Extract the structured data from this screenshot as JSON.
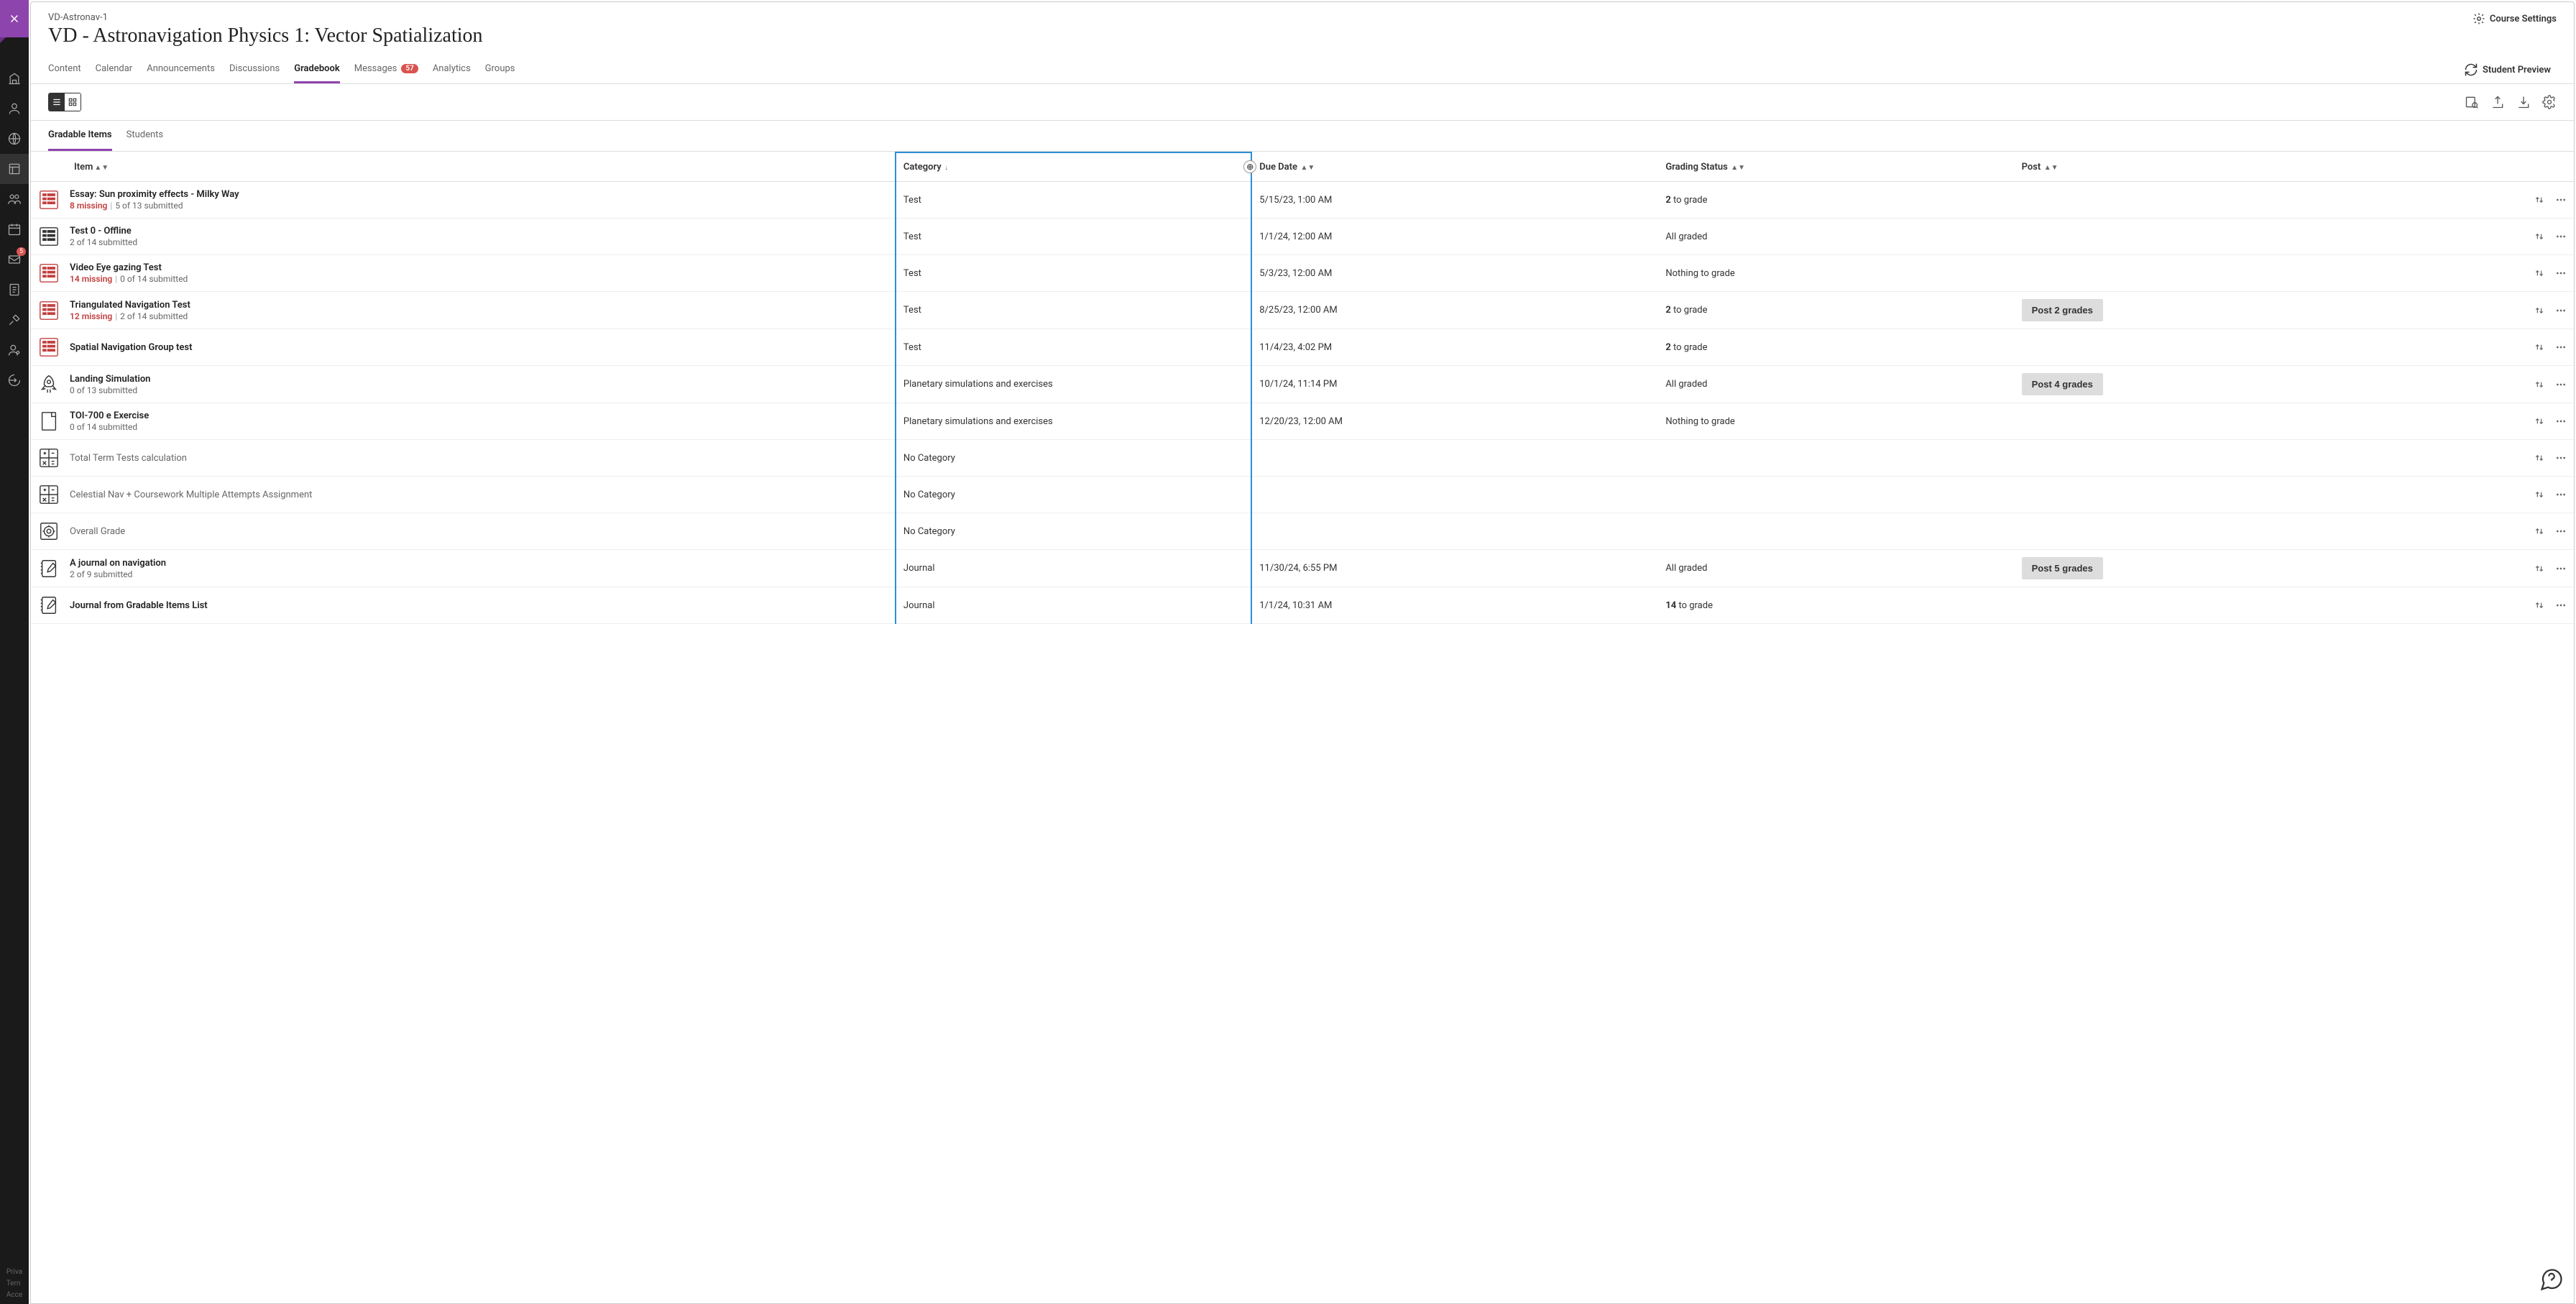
{
  "rail": {
    "footer_lines": [
      "Priva",
      "Tern",
      "Acce"
    ],
    "message_badge": "5"
  },
  "header": {
    "breadcrumb": "VD-Astronav-1",
    "title": "VD - Astronavigation Physics 1: Vector Spatialization",
    "course_settings": "Course Settings",
    "student_preview": "Student Preview"
  },
  "tabs": [
    {
      "label": "Content",
      "active": false
    },
    {
      "label": "Calendar",
      "active": false
    },
    {
      "label": "Announcements",
      "active": false
    },
    {
      "label": "Discussions",
      "active": false
    },
    {
      "label": "Gradebook",
      "active": true
    },
    {
      "label": "Messages",
      "active": false,
      "badge": "57"
    },
    {
      "label": "Analytics",
      "active": false
    },
    {
      "label": "Groups",
      "active": false
    }
  ],
  "subtabs": [
    {
      "label": "Gradable Items",
      "active": true
    },
    {
      "label": "Students",
      "active": false
    }
  ],
  "columns": {
    "item": "Item",
    "category": "Category",
    "due": "Due Date",
    "status": "Grading Status",
    "post": "Post"
  },
  "rows": [
    {
      "icon": "test",
      "icon_color": "red",
      "title": "Essay: Sun proximity effects - Milky Way",
      "missing": "8 missing",
      "submitted": "5 of 13 submitted",
      "category": "Test",
      "due": "5/15/23, 1:00 AM",
      "status_n": "2",
      "status_text": " to grade",
      "post": ""
    },
    {
      "icon": "test",
      "icon_color": "black",
      "title": "Test 0 - Offline",
      "missing": "",
      "submitted": "2 of 14 submitted",
      "category": "Test",
      "due": "1/1/24, 12:00 AM",
      "status_n": "",
      "status_text": "All graded",
      "post": ""
    },
    {
      "icon": "test",
      "icon_color": "red",
      "title": "Video Eye gazing Test",
      "missing": "14 missing",
      "submitted": "0 of 14 submitted",
      "category": "Test",
      "due": "5/3/23, 12:00 AM",
      "status_n": "",
      "status_text": "Nothing to grade",
      "post": ""
    },
    {
      "icon": "test",
      "icon_color": "red",
      "title": "Triangulated Navigation Test",
      "missing": "12 missing",
      "submitted": "2 of 14 submitted",
      "category": "Test",
      "due": "8/25/23, 12:00 AM",
      "status_n": "2",
      "status_text": " to grade",
      "post": "Post 2 grades"
    },
    {
      "icon": "test",
      "icon_color": "red",
      "title": "Spatial Navigation Group test",
      "missing": "",
      "submitted": "",
      "category": "Test",
      "due": "11/4/23, 4:02 PM",
      "status_n": "2",
      "status_text": " to grade",
      "post": ""
    },
    {
      "icon": "rocket",
      "icon_color": "black",
      "title": "Landing Simulation",
      "missing": "",
      "submitted": "0 of 13 submitted",
      "category": "Planetary simulations and exercises",
      "due": "10/1/24, 11:14 PM",
      "status_n": "",
      "status_text": "All graded",
      "post": "Post 4 grades"
    },
    {
      "icon": "doc",
      "icon_color": "black",
      "title": "TOI-700 e Exercise",
      "missing": "",
      "submitted": "0 of 14 submitted",
      "category": "Planetary simulations and exercises",
      "due": "12/20/23, 12:00 AM",
      "status_n": "",
      "status_text": "Nothing to grade",
      "post": ""
    },
    {
      "icon": "calc",
      "icon_color": "black",
      "title": "Total Term Tests calculation",
      "title_grey": true,
      "missing": "",
      "submitted": "",
      "category": "No Category",
      "due": "",
      "status_n": "",
      "status_text": "",
      "post": ""
    },
    {
      "icon": "calc",
      "icon_color": "black",
      "title": "Celestial Nav + Coursework Multiple Attempts Assignment",
      "title_grey": true,
      "missing": "",
      "submitted": "",
      "category": "No Category",
      "due": "",
      "status_n": "",
      "status_text": "",
      "post": ""
    },
    {
      "icon": "overall",
      "icon_color": "black",
      "title": "Overall Grade",
      "title_grey": true,
      "missing": "",
      "submitted": "",
      "category": "No Category",
      "due": "",
      "status_n": "",
      "status_text": "",
      "post": ""
    },
    {
      "icon": "journal",
      "icon_color": "black",
      "title": "A journal on navigation",
      "missing": "",
      "submitted": "2 of 9 submitted",
      "category": "Journal",
      "due": "11/30/24, 6:55 PM",
      "status_n": "",
      "status_text": "All graded",
      "post": "Post 5 grades"
    },
    {
      "icon": "journal",
      "icon_color": "black",
      "title": "Journal from Gradable Items List",
      "missing": "",
      "submitted": "",
      "category": "Journal",
      "due": "1/1/24, 10:31 AM",
      "status_n": "14",
      "status_text": " to grade",
      "post": ""
    }
  ]
}
